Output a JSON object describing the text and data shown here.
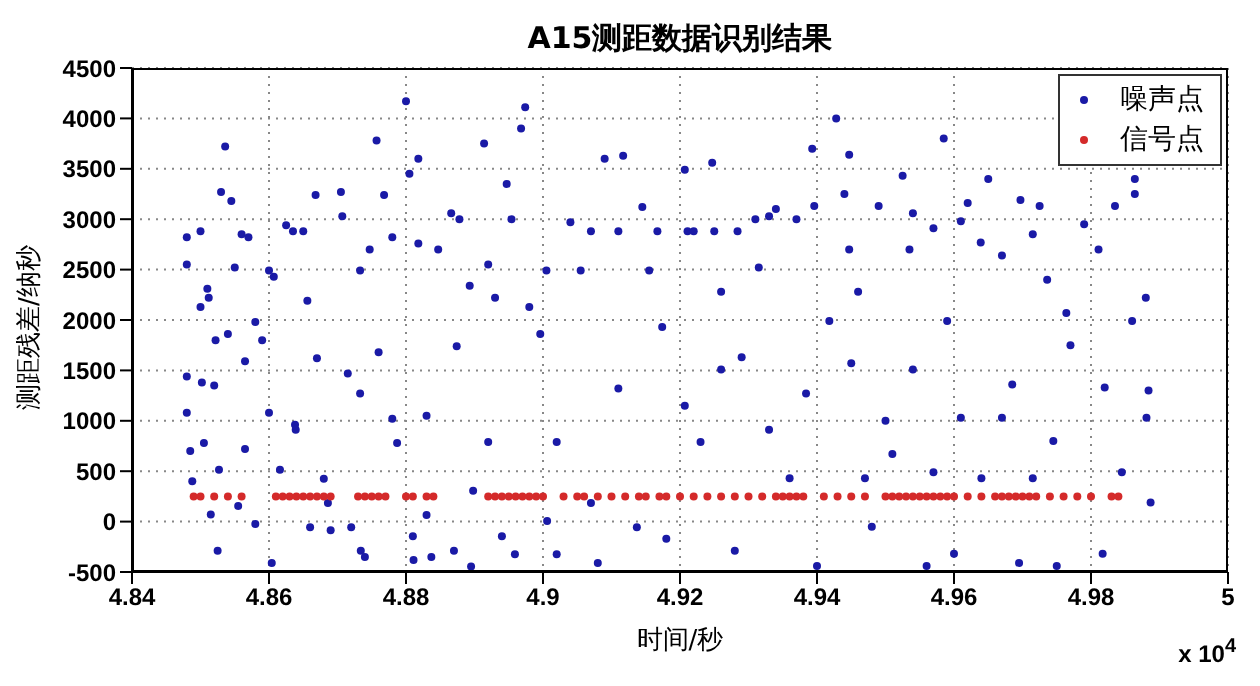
{
  "chart_data": {
    "type": "scatter",
    "title": "A15测距数据识别结果",
    "xlabel": "时间/秒",
    "ylabel": "测距残差/纳秒",
    "annotations": [
      "x 10$^{4}$"
    ],
    "xlim": [
      4.84,
      5
    ],
    "xticks": [
      4.84,
      4.86,
      4.88,
      4.9,
      4.92,
      4.94,
      4.96,
      4.98,
      5
    ],
    "ylim": [
      -500,
      4500
    ],
    "yticks": [
      -500,
      0,
      500,
      1000,
      1500,
      2000,
      2500,
      3000,
      3500,
      4000,
      4500
    ],
    "grid": true,
    "legend": "top right",
    "marker": "circle",
    "series": [
      {
        "name": "噪声点",
        "color": "#1a1aa6",
        "x": [
          4.848,
          4.848,
          4.848,
          4.848,
          4.8485,
          4.8488,
          4.85,
          4.85,
          4.8502,
          4.8505,
          4.851,
          4.8512,
          4.8515,
          4.852,
          4.8522,
          4.8525,
          4.8527,
          4.853,
          4.8536,
          4.854,
          4.8545,
          4.855,
          4.8555,
          4.856,
          4.8565,
          4.857,
          4.858,
          4.858,
          4.859,
          4.86,
          4.86,
          4.8604,
          4.8607,
          4.8616,
          4.8625,
          4.8635,
          4.8638,
          4.865,
          4.8656,
          4.866,
          4.8668,
          4.867,
          4.868,
          4.869,
          4.8705,
          4.8707,
          4.8715,
          4.872,
          4.8733,
          4.8734,
          4.874,
          4.8747,
          4.8757,
          4.876,
          4.8768,
          4.878,
          4.8787,
          4.88,
          4.8805,
          4.881,
          4.8811,
          4.8818,
          4.8818,
          4.883,
          4.8837,
          4.8847,
          4.8866,
          4.887,
          4.8874,
          4.8878,
          4.8893,
          4.8895,
          4.8898,
          4.8914,
          4.892,
          4.893,
          4.894,
          4.8947,
          4.8954,
          4.8959,
          4.8968,
          4.8974,
          4.898,
          4.8996,
          4.9005,
          4.9006,
          4.902,
          4.904,
          4.9055,
          4.907,
          4.908,
          4.909,
          4.911,
          4.9117,
          4.9137,
          4.9145,
          4.9155,
          4.9167,
          4.9207,
          4.9211,
          4.922,
          4.9247,
          4.925,
          4.926,
          4.928,
          4.9284,
          4.931,
          4.9315,
          4.933,
          4.934,
          4.937,
          4.9393,
          4.9396,
          4.94,
          4.9428,
          4.944,
          4.9447,
          4.9447,
          4.946,
          4.948,
          4.949,
          4.95,
          4.9525,
          4.9535,
          4.954,
          4.956,
          4.957,
          4.9585,
          4.959,
          4.96,
          4.961,
          4.962,
          4.9639,
          4.965,
          4.967,
          4.9685,
          4.9695,
          4.9697,
          4.9715,
          4.9725,
          4.9736,
          4.975,
          4.9764,
          4.979,
          4.9811,
          4.9817,
          4.9835,
          4.986,
          4.9864,
          4.9864,
          4.988,
          4.9884,
          4.9881,
          4.9887,
          4.9845,
          4.982,
          4.977,
          4.9745,
          4.9715,
          4.967,
          4.964,
          4.961,
          4.957,
          4.954,
          4.951,
          4.947,
          4.945,
          4.9418,
          4.9384,
          4.936,
          4.933,
          4.929,
          4.926,
          4.923,
          4.9207,
          4.9174,
          4.918,
          4.878,
          4.8733,
          4.8639,
          4.8565,
          4.892,
          4.902,
          4.911,
          4.907,
          4.883,
          4.8686
        ],
        "values": [
          2820,
          2550,
          1440,
          1080,
          700,
          400,
          2880,
          2130,
          1380,
          780,
          2310,
          2220,
          70,
          1350,
          1800,
          -290,
          515,
          3270,
          3720,
          1860,
          3180,
          2520,
          155,
          2850,
          1590,
          2820,
          1980,
          -25,
          1800,
          2490,
          1080,
          -410,
          2430,
          515,
          2940,
          2880,
          960,
          2880,
          2190,
          -55,
          3240,
          1620,
          425,
          -85,
          3270,
          3030,
          1470,
          -55,
          2490,
          -290,
          -350,
          2700,
          3780,
          1680,
          3240,
          2820,
          780,
          4170,
          3450,
          -145,
          -380,
          3600,
          2760,
          1050,
          -350,
          2700,
          3060,
          -290,
          1740,
          3000,
          2340,
          -445,
          305,
          3750,
          2550,
          2220,
          -145,
          3350,
          3000,
          -325,
          3900,
          4110,
          2130,
          1860,
          2490,
          5,
          -325,
          2970,
          2490,
          2880,
          -410,
          3600,
          2880,
          3630,
          -55,
          3120,
          2490,
          2880,
          3490,
          2880,
          2880,
          3560,
          2880,
          2280,
          -290,
          2880,
          3000,
          2520,
          3030,
          3100,
          3000,
          3700,
          3130,
          -440,
          4000,
          3250,
          3640,
          2700,
          2280,
          -50,
          3130,
          1000,
          3430,
          2700,
          3060,
          -440,
          2910,
          3800,
          1990,
          -320,
          2980,
          3160,
          2770,
          3400,
          2640,
          1360,
          -410,
          3190,
          2850,
          3130,
          2400,
          -440,
          2070,
          2950,
          2700,
          -320,
          3130,
          1990,
          3400,
          3250,
          2220,
          1300,
          1030,
          190,
          490,
          1330,
          1750,
          800,
          430,
          1030,
          430,
          1030,
          490,
          1510,
          670,
          430,
          1570,
          1990,
          1270,
          430,
          910,
          1630,
          1510,
          790,
          1150,
          1930,
          -170,
          1020,
          1270,
          910,
          720,
          790,
          790,
          1320,
          185,
          65,
          185
        ]
      },
      {
        "name": "信号点",
        "color": "#d42a2a",
        "x": [
          4.849,
          4.85,
          4.852,
          4.854,
          4.856,
          4.861,
          4.862,
          4.863,
          4.864,
          4.865,
          4.866,
          4.867,
          4.868,
          4.869,
          4.873,
          4.874,
          4.875,
          4.876,
          4.877,
          4.88,
          4.881,
          4.883,
          4.884,
          4.892,
          4.893,
          4.894,
          4.895,
          4.896,
          4.897,
          4.898,
          4.899,
          4.9,
          4.903,
          4.905,
          4.906,
          4.908,
          4.91,
          4.912,
          4.914,
          4.915,
          4.917,
          4.918,
          4.92,
          4.922,
          4.924,
          4.926,
          4.928,
          4.93,
          4.932,
          4.934,
          4.935,
          4.936,
          4.937,
          4.938,
          4.941,
          4.943,
          4.945,
          4.947,
          4.95,
          4.951,
          4.952,
          4.953,
          4.954,
          4.955,
          4.956,
          4.957,
          4.958,
          4.959,
          4.96,
          4.962,
          4.964,
          4.966,
          4.967,
          4.968,
          4.969,
          4.97,
          4.971,
          4.972,
          4.974,
          4.976,
          4.978,
          4.98,
          4.983,
          4.984
        ],
        "values": [
          250,
          250,
          250,
          250,
          250,
          250,
          250,
          250,
          250,
          250,
          250,
          250,
          250,
          250,
          250,
          250,
          250,
          250,
          250,
          250,
          250,
          250,
          250,
          250,
          250,
          250,
          250,
          250,
          250,
          250,
          250,
          250,
          250,
          250,
          250,
          250,
          250,
          250,
          250,
          250,
          250,
          250,
          250,
          250,
          250,
          250,
          250,
          250,
          250,
          250,
          250,
          250,
          250,
          250,
          250,
          250,
          250,
          250,
          250,
          250,
          250,
          250,
          250,
          250,
          250,
          250,
          250,
          250,
          250,
          250,
          250,
          250,
          250,
          250,
          250,
          250,
          250,
          250,
          250,
          250,
          250,
          250,
          250,
          250
        ]
      }
    ]
  }
}
